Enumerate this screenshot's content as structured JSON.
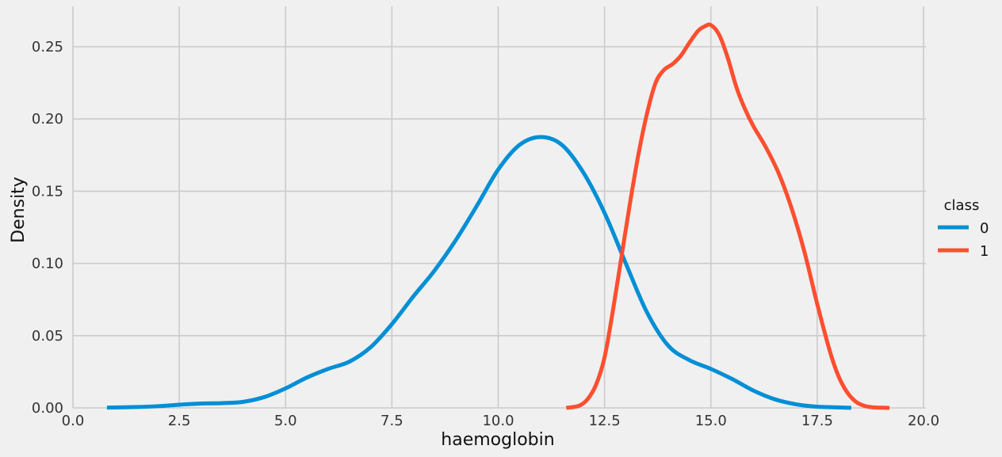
{
  "chart_data": {
    "type": "line",
    "title": "",
    "xlabel": "haemoglobin",
    "ylabel": "Density",
    "xlim": [
      0.0,
      20.0
    ],
    "ylim": [
      0.0,
      0.27
    ],
    "x_ticks": [
      "0.0",
      "2.5",
      "5.0",
      "7.5",
      "10.0",
      "12.5",
      "15.0",
      "17.5",
      "20.0"
    ],
    "y_ticks": [
      "0.00",
      "0.05",
      "0.10",
      "0.15",
      "0.20",
      "0.25"
    ],
    "grid": true,
    "legend": {
      "title": "class",
      "placement": "right",
      "entries": [
        "0",
        "1"
      ]
    },
    "series": [
      {
        "name": "0",
        "color": "#008fd5",
        "points": [
          [
            0.8,
            0.0002
          ],
          [
            1.5,
            0.0006
          ],
          [
            2.0,
            0.0012
          ],
          [
            2.5,
            0.0022
          ],
          [
            3.0,
            0.003
          ],
          [
            3.5,
            0.0033
          ],
          [
            4.0,
            0.0042
          ],
          [
            4.5,
            0.0075
          ],
          [
            5.0,
            0.0135
          ],
          [
            5.5,
            0.021
          ],
          [
            6.0,
            0.027
          ],
          [
            6.5,
            0.032
          ],
          [
            7.0,
            0.042
          ],
          [
            7.5,
            0.058
          ],
          [
            8.0,
            0.077
          ],
          [
            8.5,
            0.095
          ],
          [
            9.0,
            0.116
          ],
          [
            9.5,
            0.14
          ],
          [
            10.0,
            0.165
          ],
          [
            10.5,
            0.182
          ],
          [
            11.0,
            0.1875
          ],
          [
            11.5,
            0.182
          ],
          [
            12.0,
            0.163
          ],
          [
            12.5,
            0.135
          ],
          [
            13.0,
            0.1
          ],
          [
            13.5,
            0.066
          ],
          [
            14.0,
            0.043
          ],
          [
            14.5,
            0.033
          ],
          [
            15.0,
            0.027
          ],
          [
            15.5,
            0.02
          ],
          [
            16.0,
            0.012
          ],
          [
            16.5,
            0.006
          ],
          [
            17.0,
            0.0025
          ],
          [
            17.5,
            0.0008
          ],
          [
            18.3,
            0.0001
          ]
        ]
      },
      {
        "name": "1",
        "color": "#fc4f30",
        "points": [
          [
            11.6,
            0.0
          ],
          [
            11.9,
            0.0015
          ],
          [
            12.1,
            0.006
          ],
          [
            12.3,
            0.016
          ],
          [
            12.5,
            0.035
          ],
          [
            12.7,
            0.068
          ],
          [
            12.9,
            0.105
          ],
          [
            13.1,
            0.142
          ],
          [
            13.3,
            0.176
          ],
          [
            13.5,
            0.204
          ],
          [
            13.7,
            0.225
          ],
          [
            13.9,
            0.234
          ],
          [
            14.1,
            0.238
          ],
          [
            14.3,
            0.244
          ],
          [
            14.5,
            0.253
          ],
          [
            14.7,
            0.261
          ],
          [
            14.85,
            0.264
          ],
          [
            15.0,
            0.265
          ],
          [
            15.2,
            0.258
          ],
          [
            15.4,
            0.242
          ],
          [
            15.6,
            0.222
          ],
          [
            15.8,
            0.207
          ],
          [
            16.0,
            0.195
          ],
          [
            16.3,
            0.18
          ],
          [
            16.6,
            0.162
          ],
          [
            16.9,
            0.138
          ],
          [
            17.2,
            0.108
          ],
          [
            17.5,
            0.072
          ],
          [
            17.8,
            0.039
          ],
          [
            18.0,
            0.022
          ],
          [
            18.2,
            0.011
          ],
          [
            18.4,
            0.0045
          ],
          [
            18.6,
            0.0015
          ],
          [
            18.8,
            0.0004
          ],
          [
            19.2,
            0.0
          ]
        ]
      }
    ]
  }
}
